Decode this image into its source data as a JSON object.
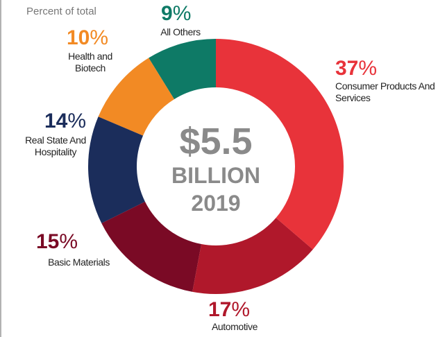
{
  "chart_data": {
    "type": "donut",
    "subtitle": "Percent of total",
    "center_text": [
      "$5.5",
      "BILLION",
      "2019"
    ],
    "categories": [
      "Consumer Products And Services",
      "Automotive",
      "Basic Materials",
      "Real State And Hospitality",
      "Health and Biotech",
      "All Others"
    ],
    "values": [
      37,
      17,
      15,
      14,
      10,
      9
    ],
    "value_labels": [
      "37%",
      "17%",
      "15%",
      "14%",
      "10%",
      "9%"
    ],
    "colors": [
      "#e8333a",
      "#b0182b",
      "#7a0a25",
      "#1b2d5b",
      "#f28a24",
      "#0e7a66"
    ]
  }
}
